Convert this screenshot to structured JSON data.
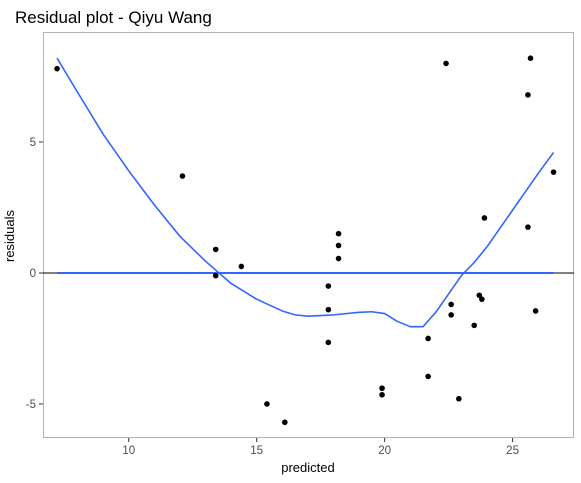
{
  "chart_data": {
    "type": "scatter",
    "title": "Residual plot - Qiyu Wang",
    "xlabel": "predicted",
    "ylabel": "residuals",
    "xlim": [
      6.65,
      27.4
    ],
    "ylim": [
      -6.3,
      9.2
    ],
    "x_ticks": [
      10,
      15,
      20,
      25
    ],
    "y_ticks": [
      -5,
      0,
      5
    ],
    "grid": false,
    "panel_border": true,
    "points": [
      {
        "x": 7.2,
        "y": 7.8
      },
      {
        "x": 12.1,
        "y": 3.7
      },
      {
        "x": 13.4,
        "y": 0.9
      },
      {
        "x": 13.4,
        "y": -0.1
      },
      {
        "x": 14.4,
        "y": 0.25
      },
      {
        "x": 15.4,
        "y": -5.0
      },
      {
        "x": 16.1,
        "y": -5.7
      },
      {
        "x": 17.8,
        "y": -0.5
      },
      {
        "x": 17.8,
        "y": -1.4
      },
      {
        "x": 17.8,
        "y": -2.65
      },
      {
        "x": 18.2,
        "y": 1.5
      },
      {
        "x": 18.2,
        "y": 1.05
      },
      {
        "x": 18.2,
        "y": 0.55
      },
      {
        "x": 19.9,
        "y": -4.4
      },
      {
        "x": 19.9,
        "y": -4.65
      },
      {
        "x": 21.7,
        "y": -2.5
      },
      {
        "x": 21.7,
        "y": -3.95
      },
      {
        "x": 22.4,
        "y": 8.0
      },
      {
        "x": 22.6,
        "y": -1.2
      },
      {
        "x": 22.6,
        "y": -1.6
      },
      {
        "x": 22.9,
        "y": -4.8
      },
      {
        "x": 23.5,
        "y": -2.0
      },
      {
        "x": 23.7,
        "y": -0.85
      },
      {
        "x": 23.8,
        "y": -1.0
      },
      {
        "x": 23.9,
        "y": 2.1
      },
      {
        "x": 25.6,
        "y": 6.8
      },
      {
        "x": 25.6,
        "y": 1.75
      },
      {
        "x": 25.7,
        "y": 8.2
      },
      {
        "x": 25.9,
        "y": -1.45
      },
      {
        "x": 26.6,
        "y": 3.85
      }
    ],
    "reference_line": {
      "y": 0,
      "color": "#000000"
    },
    "flat_fit": {
      "y": 0,
      "x_range": [
        7.2,
        26.6
      ],
      "color": "#3366FF"
    },
    "smooth_fit": {
      "color": "#3366FF",
      "x": [
        7.2,
        8,
        9,
        10,
        11,
        12,
        13,
        14,
        15,
        16,
        16.5,
        17,
        18,
        19,
        19.5,
        20,
        20.5,
        21,
        21.5,
        22,
        22.5,
        23,
        23.5,
        24,
        24.5,
        25,
        25.5,
        26,
        26.6
      ],
      "y": [
        8.2,
        6.9,
        5.3,
        3.9,
        2.6,
        1.4,
        0.45,
        -0.4,
        -1.0,
        -1.45,
        -1.6,
        -1.65,
        -1.6,
        -1.5,
        -1.48,
        -1.55,
        -1.85,
        -2.05,
        -2.05,
        -1.5,
        -0.8,
        -0.1,
        0.4,
        1.0,
        1.7,
        2.4,
        3.1,
        3.8,
        4.6
      ]
    }
  }
}
